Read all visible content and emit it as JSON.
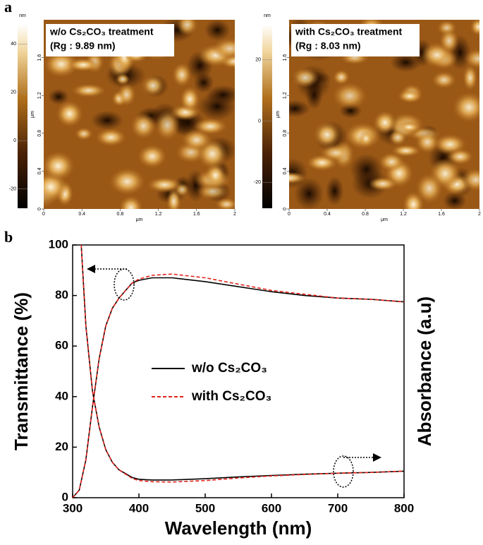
{
  "panel_labels": [
    "a",
    "b"
  ],
  "afm_images": [
    {
      "annotation": [
        "w/o Cs₂CO₃ treatment",
        "(Rg : 9.89 nm)"
      ],
      "colorbar_unit": "nm",
      "colorbar_lim": [
        -28,
        48
      ],
      "colorbar_ticks": [
        -20,
        0,
        20,
        40
      ],
      "axis_label": "μm",
      "xticks": [
        0,
        0.4,
        0.8,
        1.2,
        1.6,
        2
      ],
      "yticks": [
        0,
        0.4,
        0.8,
        1.2,
        1.6
      ],
      "lim": [
        0,
        2
      ]
    },
    {
      "annotation": [
        "with Cs₂CO₃ treatment",
        "(Rg : 8.03 nm)"
      ],
      "colorbar_unit": "nm",
      "colorbar_lim": [
        -28.5,
        31.5
      ],
      "colorbar_ticks": [
        -20,
        0,
        20
      ],
      "axis_label": "μm",
      "xticks": [
        0,
        0.4,
        0.8,
        1.2,
        1.6,
        2
      ],
      "yticks": [
        0,
        0.4,
        0.8,
        1.2,
        1.6
      ],
      "lim": [
        0,
        2
      ]
    }
  ],
  "chart_data": {
    "type": "line",
    "x_label": "Wavelength (nm)",
    "y_label": "Transmittance (%)",
    "y2_label": "Absorbance (a.u)",
    "x": [
      300,
      310,
      320,
      330,
      340,
      350,
      360,
      370,
      380,
      390,
      400,
      420,
      450,
      500,
      550,
      600,
      650,
      700,
      750,
      800
    ],
    "xlim": [
      300,
      800
    ],
    "xticks": [
      300,
      400,
      500,
      600,
      700,
      800
    ],
    "ylim": [
      0,
      100
    ],
    "yticks": [
      0,
      20,
      40,
      60,
      80,
      100
    ],
    "y2lim": [
      0,
      100
    ],
    "series": [
      {
        "name": "w/o Cs₂CO₃",
        "color": "#000000",
        "line_style": "solid",
        "values": [
          0,
          3,
          15,
          36,
          55,
          68,
          75,
          79,
          82,
          85,
          86,
          87,
          87,
          85.5,
          83.5,
          81.5,
          80,
          79,
          78.5,
          77.5
        ]
      },
      {
        "name": "with Cs₂CO₃",
        "color": "#e2231a",
        "line_style": "dashed",
        "values": [
          0,
          3,
          15,
          36,
          55,
          68,
          75,
          79,
          82,
          85,
          86.5,
          88,
          88.5,
          87,
          84.5,
          82,
          80.5,
          79,
          78.5,
          77.5
        ]
      },
      {
        "color": "#000000",
        "line_style": "solid",
        "axis": "y2",
        "x": [
          313,
          320,
          330,
          340,
          350,
          360,
          370,
          380,
          390,
          400,
          420,
          450,
          500,
          550,
          600,
          650,
          700,
          750,
          800
        ],
        "values": [
          100,
          68,
          42,
          28,
          19,
          14,
          11,
          9.5,
          8,
          7.3,
          7,
          7,
          7.5,
          8.2,
          8.8,
          9.3,
          9.7,
          10,
          10.5
        ]
      },
      {
        "color": "#e2231a",
        "line_style": "dashed",
        "axis": "y2",
        "x": [
          313,
          320,
          330,
          340,
          350,
          360,
          370,
          380,
          390,
          400,
          420,
          450,
          500,
          550,
          600,
          650,
          700,
          750,
          800
        ],
        "values": [
          100,
          68,
          42,
          28,
          19,
          14,
          11,
          9.3,
          7.6,
          6.8,
          6.3,
          6.2,
          6.8,
          7.8,
          8.6,
          9.2,
          9.7,
          10,
          10.5
        ]
      }
    ]
  }
}
